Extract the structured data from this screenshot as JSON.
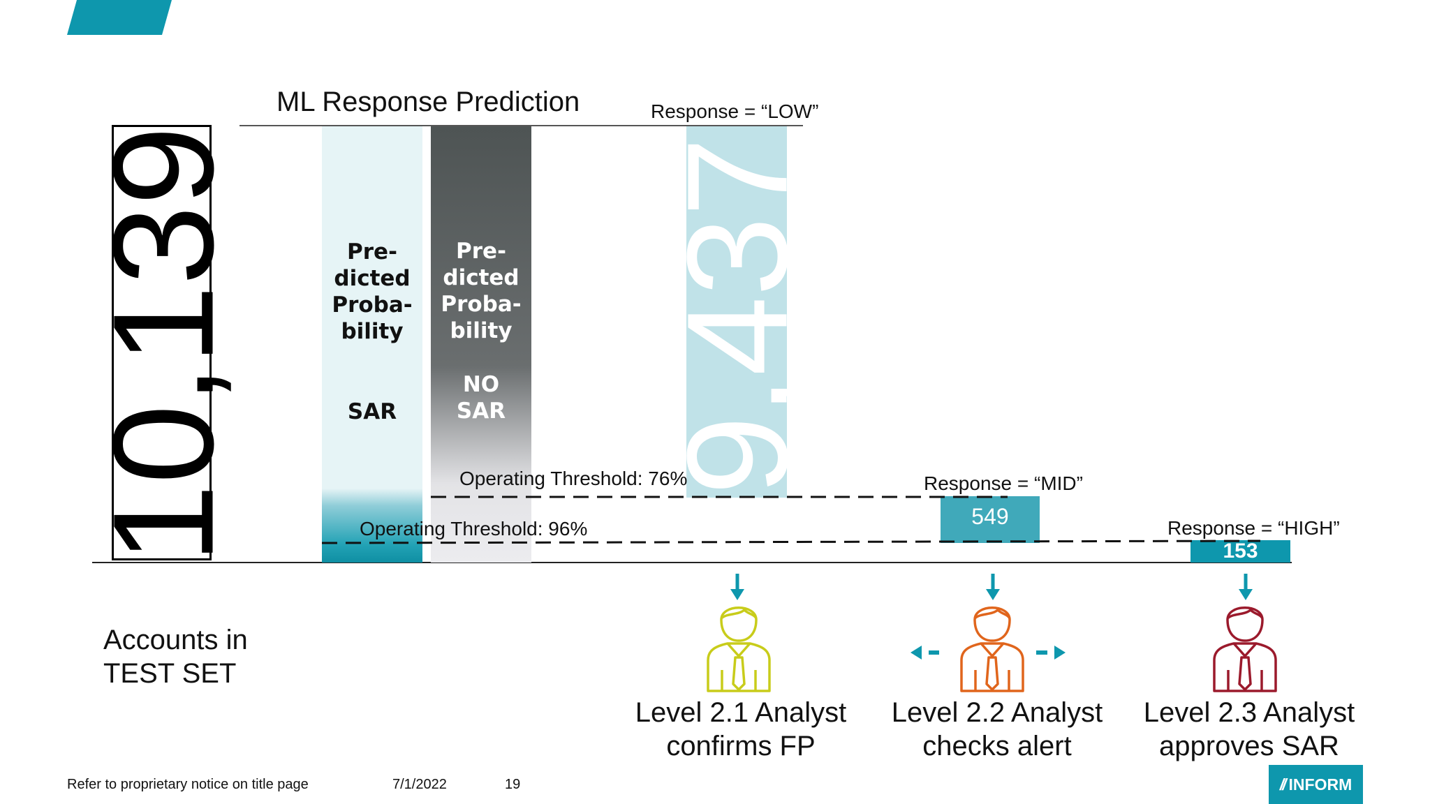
{
  "title": "ML Response Prediction",
  "total": {
    "value": "10,139",
    "label_line1": "Accounts in",
    "label_line2": "TEST SET"
  },
  "columns": {
    "sar": {
      "line1": "Pre-",
      "line2": "dicted",
      "line3": "Proba-",
      "line4": "bility",
      "class": "SAR"
    },
    "no_sar": {
      "line1": "Pre-",
      "line2": "dicted",
      "line3": "Proba-",
      "line4": "bility",
      "class_line1": "NO",
      "class_line2": "SAR"
    }
  },
  "thresholds": {
    "low": "Operating Threshold: 76%",
    "high": "Operating Threshold:  96%"
  },
  "responses": {
    "low": {
      "label": "Response = “LOW”",
      "count": "9,437"
    },
    "mid": {
      "label": "Response = “MID”",
      "count": "549"
    },
    "high": {
      "label": "Response = “HIGH”",
      "count": "153"
    }
  },
  "analysts": [
    {
      "line1": "Level 2.1 Analyst",
      "line2": "confirms FP",
      "icon": "analyst-person-icon",
      "color": "#c8cc1a"
    },
    {
      "line1": "Level 2.2 Analyst",
      "line2": "checks alert",
      "icon": "analyst-person-icon",
      "color": "#e0651c"
    },
    {
      "line1": "Level 2.3 Analyst",
      "line2": "approves SAR",
      "icon": "analyst-person-icon",
      "color": "#9b1a2c"
    }
  ],
  "footer": {
    "notice": "Refer to proprietary notice on title page",
    "date": "7/1/2022",
    "page": "19",
    "logo": "INFORM"
  },
  "colors": {
    "accent": "#0e97ad",
    "low_bar": "#c0e2e8",
    "mid_box": "#40a9ba",
    "dark_bar": "#4e5454"
  }
}
